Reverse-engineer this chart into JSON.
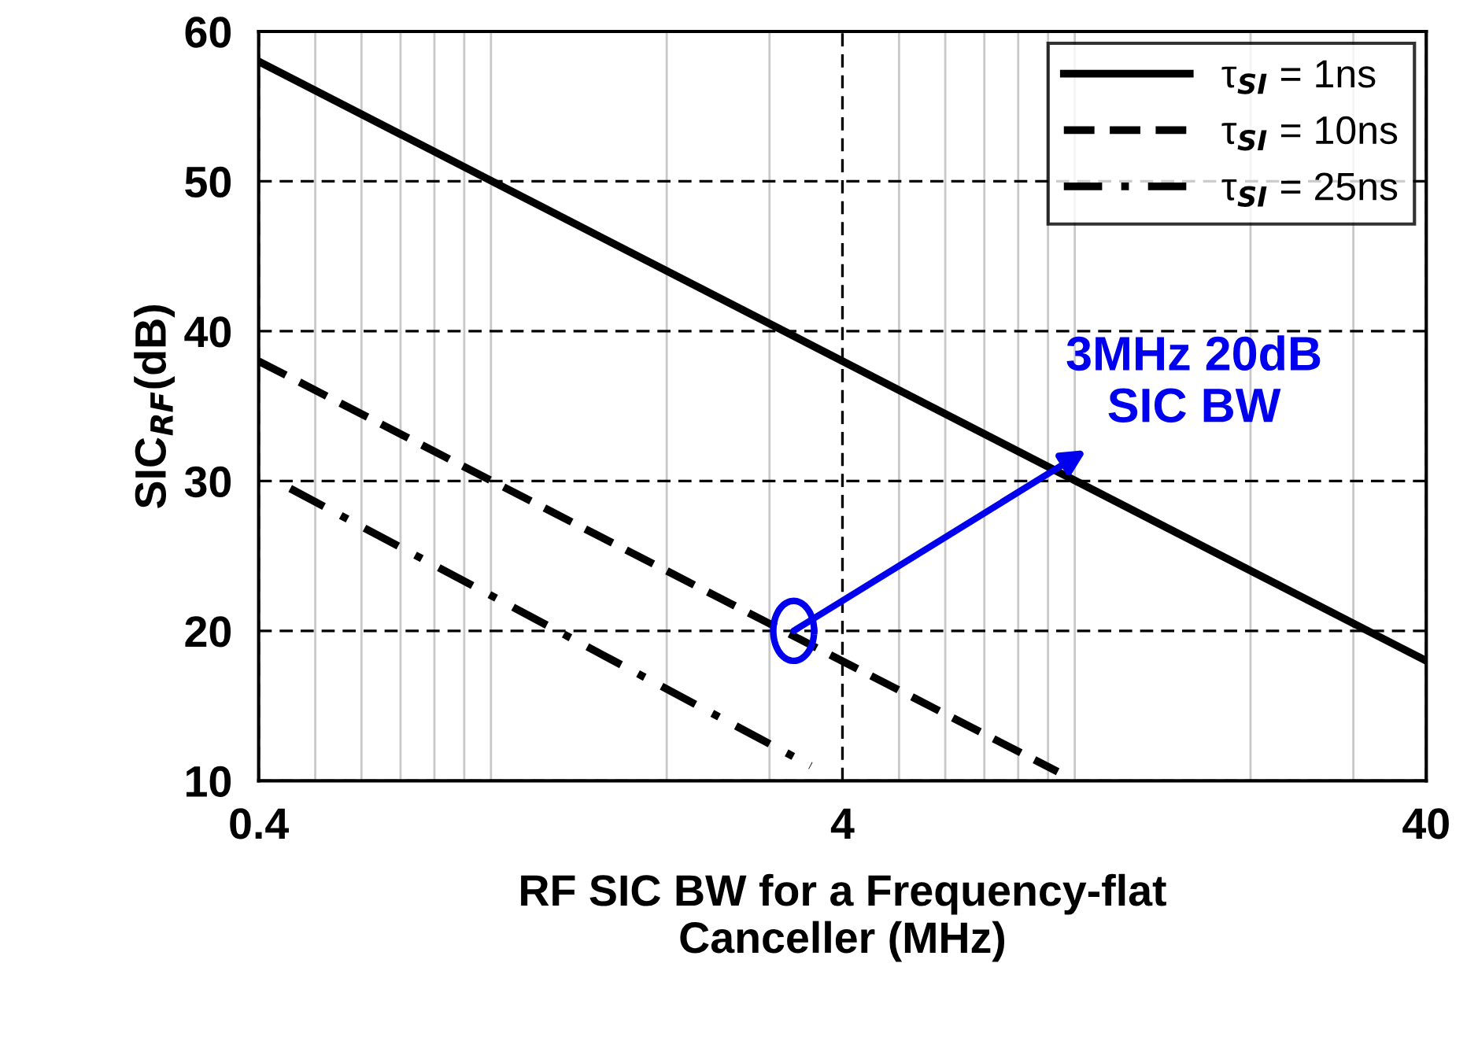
{
  "chart_data": {
    "type": "line",
    "xlabel": "RF SIC BW for a Frequency-flat\nCanceller (MHz)",
    "ylabel": "SIC$_{RF}$(dB)",
    "series": [
      {
        "name": "τ$_{SI}$ = 1ns",
        "color": "#000000",
        "line_style": "solid",
        "x": [
          0.4,
          40
        ],
        "values": [
          58,
          18
        ]
      },
      {
        "name": "τ$_{SI}$ = 10ns",
        "color": "#000000",
        "line_style": "dashed",
        "x": [
          0.4,
          9.35
        ],
        "values": [
          38,
          10.6
        ]
      },
      {
        "name": "τ$_{SI}$ = 25ns",
        "color": "#000000",
        "line_style": "dashdot",
        "x": [
          0.453,
          3.53
        ],
        "values": [
          29.5,
          11
        ]
      }
    ],
    "log": "x",
    "xlim": [
      0.4,
      40
    ],
    "xticks": [
      0.4,
      4,
      40
    ],
    "ylim": [
      10,
      60
    ],
    "yticks": [
      10,
      20,
      30,
      40,
      50,
      60
    ],
    "grid": true,
    "legend": "top right",
    "marker": "none",
    "annotations": [
      {
        "text": "3MHz 20dB\nSIC BW",
        "x": 3.3,
        "y": 20
      }
    ]
  }
}
